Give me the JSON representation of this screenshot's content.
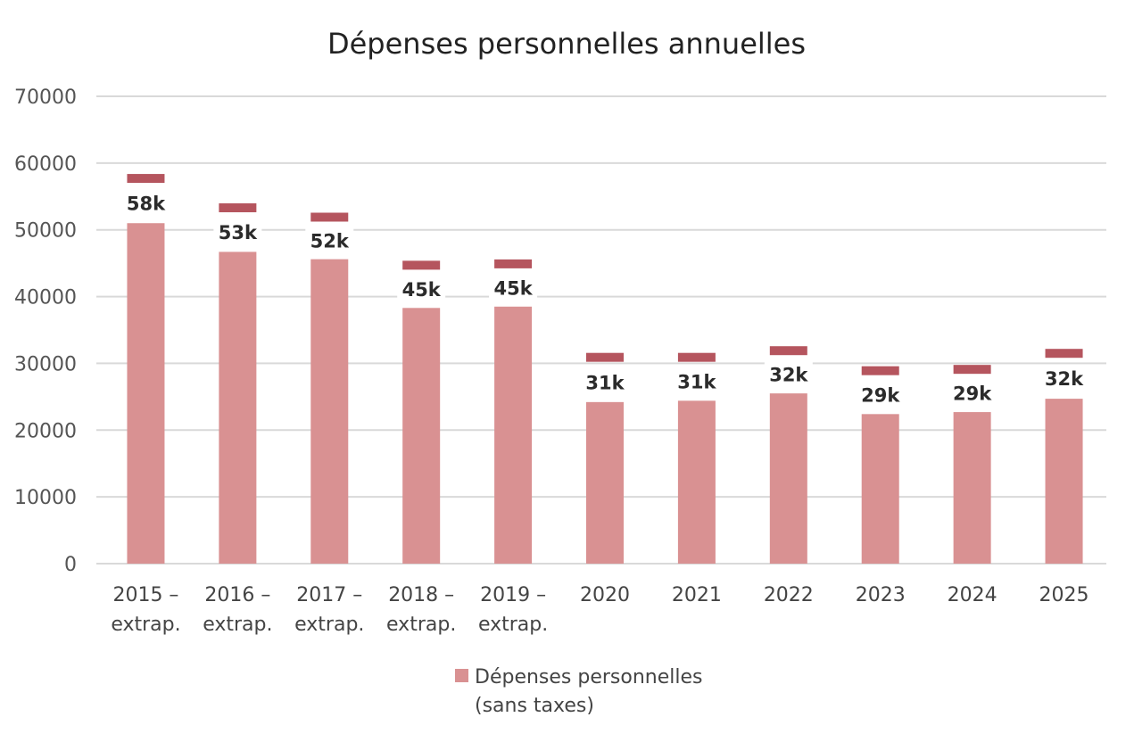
{
  "chart_data": {
    "type": "bar",
    "title": "Dépenses personnelles annuelles",
    "xlabel": "",
    "ylabel": "",
    "ylim": [
      0,
      70000
    ],
    "yticks": [
      0,
      10000,
      20000,
      30000,
      40000,
      50000,
      60000,
      70000
    ],
    "ytick_labels": [
      "0",
      "10000",
      "20000",
      "30000",
      "40000",
      "50000",
      "60000",
      "70000"
    ],
    "grid": true,
    "legend_position": "bottom",
    "categories": [
      [
        "2015 –",
        "extrap."
      ],
      [
        "2016 –",
        "extrap."
      ],
      [
        "2017 –",
        "extrap."
      ],
      [
        "2018 –",
        "extrap."
      ],
      [
        "2019 –",
        "extrap."
      ],
      [
        "2020"
      ],
      [
        "2021"
      ],
      [
        "2022"
      ],
      [
        "2023"
      ],
      [
        "2024"
      ],
      [
        "2025"
      ]
    ],
    "series": [
      {
        "name": "Dépenses personnelles (sans taxes)",
        "legend_lines": [
          "Dépenses personnelles",
          "(sans taxes)"
        ],
        "color": "#d99192",
        "values": [
          51000,
          46700,
          45600,
          38300,
          38500,
          24200,
          24400,
          25500,
          22400,
          22700,
          24700
        ]
      }
    ],
    "top_markers": {
      "color": "#b5555e",
      "values": [
        57700,
        53300,
        51900,
        44700,
        44900,
        30900,
        30900,
        31900,
        28900,
        29100,
        31500
      ]
    },
    "data_labels": [
      "58k",
      "53k",
      "52k",
      "45k",
      "45k",
      "31k",
      "31k",
      "32k",
      "29k",
      "29k",
      "32k"
    ]
  }
}
